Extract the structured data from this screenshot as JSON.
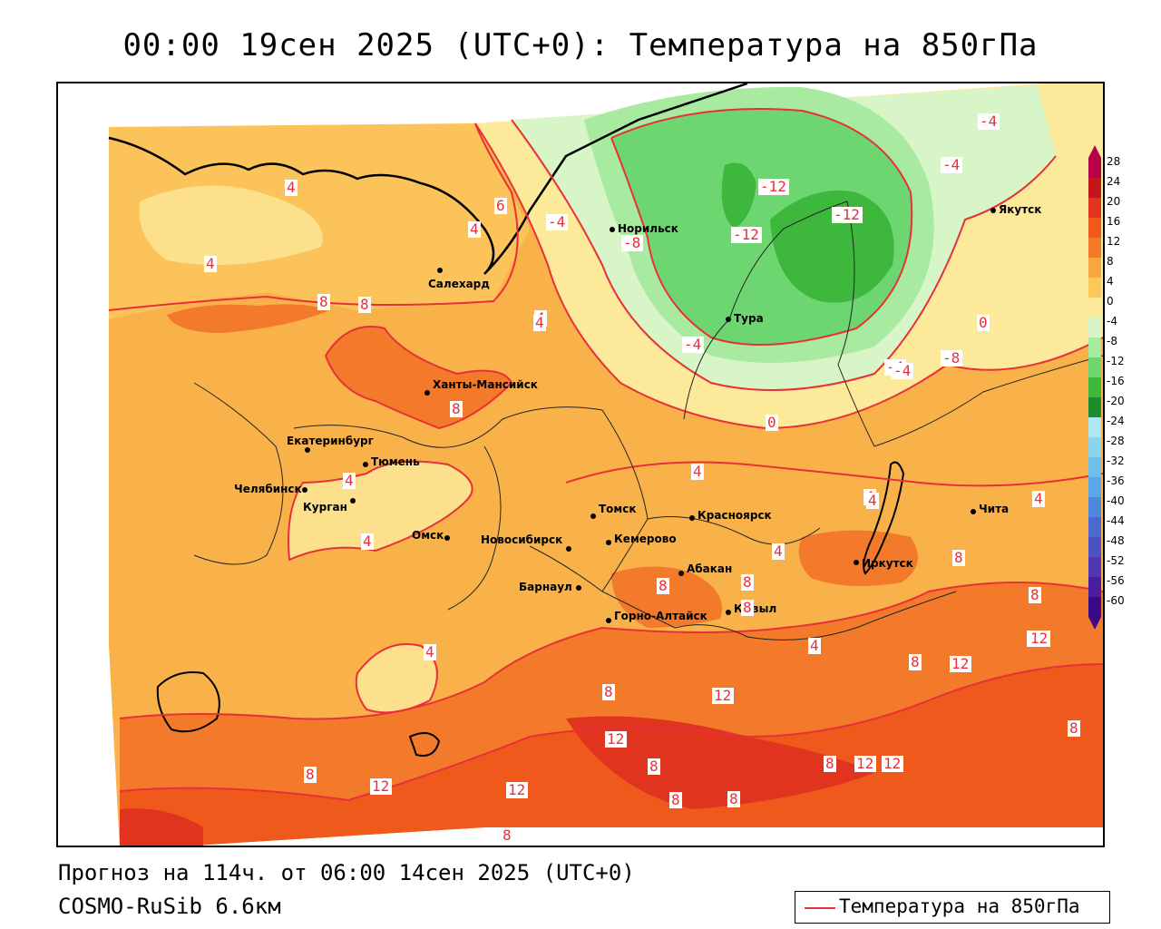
{
  "title": "00:00 19сен 2025 (UTC+0): Температура на 850гПа",
  "footer": {
    "forecast": "Прогноз на 114ч. от 06:00 14сен 2025 (UTC+0)",
    "model": "COSMO-RuSib 6.6км"
  },
  "legend": {
    "label": "Температура на 850гПа",
    "line_color": "#e8303a"
  },
  "colorbar": {
    "ticks": [
      "28",
      "24",
      "20",
      "16",
      "12",
      "8",
      "4",
      "0",
      "-4",
      "-8",
      "-12",
      "-16",
      "-20",
      "-24",
      "-28",
      "-32",
      "-36",
      "-40",
      "-44",
      "-48",
      "-52",
      "-56",
      "-60"
    ],
    "colors": [
      "#b8004a",
      "#c4151b",
      "#e0341e",
      "#ef5a1c",
      "#f37a2a",
      "#f9a540",
      "#fcc85a",
      "#fde99a",
      "#d8f5c8",
      "#a8eaa0",
      "#6ed670",
      "#3eb83c",
      "#1d8c2e",
      "#aee6f4",
      "#8cd4ee",
      "#6ec0ea",
      "#5aa6e6",
      "#4d88dc",
      "#4a6ad0",
      "#4c52c4",
      "#5238b0",
      "#4a1ea0",
      "#3a0a86"
    ]
  },
  "cities": [
    {
      "name": "Норильск"
    },
    {
      "name": "Якутск"
    },
    {
      "name": "Салехард"
    },
    {
      "name": "Тура"
    },
    {
      "name": "Ханты-Мансийск"
    },
    {
      "name": "Екатеринбург"
    },
    {
      "name": "Тюмень"
    },
    {
      "name": "Челябинск"
    },
    {
      "name": "Курган"
    },
    {
      "name": "Омск"
    },
    {
      "name": "Томск"
    },
    {
      "name": "Красноярск"
    },
    {
      "name": "Новосибирск"
    },
    {
      "name": "Кемерово"
    },
    {
      "name": "Абакан"
    },
    {
      "name": "Барнаул"
    },
    {
      "name": "Горно-Алтайск"
    },
    {
      "name": "Кызыл"
    },
    {
      "name": "Иркутск"
    },
    {
      "name": "Чита"
    }
  ],
  "isotherm_labels": [
    "4",
    "4",
    "4",
    "6",
    "4",
    "-4",
    "-8",
    "-12",
    "-12",
    "-12",
    "-4",
    "-4",
    "-4",
    "8",
    "8",
    "4",
    "8",
    "4",
    "-4",
    "0",
    "-8",
    "-4",
    "0",
    "4",
    "4",
    "4",
    "4",
    "4",
    "8",
    "4",
    "8",
    "8",
    "8",
    "8",
    "12",
    "4",
    "4",
    "12",
    "8",
    "8",
    "8",
    "12",
    "12",
    "12",
    "12",
    "8",
    "8",
    "8",
    "8",
    "12",
    "8",
    "12",
    "12",
    "8"
  ]
}
